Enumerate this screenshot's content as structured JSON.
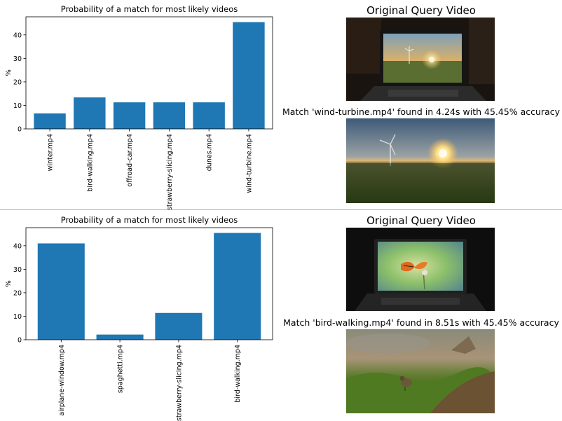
{
  "chart_data": [
    {
      "type": "bar",
      "title": "Probability of a match for most likely videos",
      "ylabel": "%",
      "xlabel": "",
      "categories": [
        "winter.mp4",
        "bird-walking.mp4",
        "offroad-car.mp4",
        "strawberry-slicing.mp4",
        "dunes.mp4",
        "wind-turbine.mp4"
      ],
      "values": [
        6.6,
        13.4,
        11.3,
        11.3,
        11.3,
        45.45
      ],
      "ylim": [
        0,
        47.7
      ],
      "yticks": [
        0,
        10,
        20,
        30,
        40
      ],
      "color": "#1f77b4",
      "grid": false
    },
    {
      "type": "bar",
      "title": "Probability of a match for most likely videos",
      "ylabel": "%",
      "xlabel": "",
      "categories": [
        "airplane-window.mp4",
        "spaghetti.mp4",
        "strawberry-slicing.mp4",
        "bird-walking.mp4"
      ],
      "values": [
        41.0,
        2.2,
        11.4,
        45.45
      ],
      "ylim": [
        0,
        47.7
      ],
      "yticks": [
        0,
        10,
        20,
        30,
        40
      ],
      "color": "#1f77b4",
      "grid": false
    }
  ],
  "panels": [
    {
      "query_title": "Original Query Video",
      "match_caption": "Match 'wind-turbine.mp4' found in 4.24s with 45.45% accuracy"
    },
    {
      "query_title": "Original Query Video",
      "match_caption": "Match 'bird-walking.mp4' found in 8.51s with 45.45% accuracy"
    }
  ],
  "colors": {
    "bar": "#1f77b4",
    "divider": "#b0b0b0"
  },
  "images": [
    "laptop-sunset-turbine-photo",
    "wind-turbine-sunset-photo",
    "laptop-butterfly-photo",
    "bird-on-grass-photo"
  ]
}
